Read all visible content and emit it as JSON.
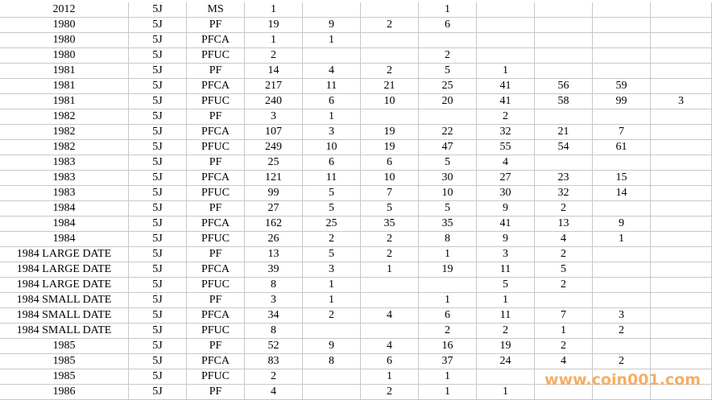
{
  "table": {
    "rows": [
      [
        "2012",
        "5J",
        "MS",
        1,
        null,
        null,
        1,
        null,
        null,
        null,
        null
      ],
      [
        "1980",
        "5J",
        "PF",
        19,
        9,
        2,
        6,
        null,
        null,
        null,
        null
      ],
      [
        "1980",
        "5J",
        "PFCA",
        1,
        1,
        null,
        null,
        null,
        null,
        null,
        null
      ],
      [
        "1980",
        "5J",
        "PFUC",
        2,
        null,
        null,
        2,
        null,
        null,
        null,
        null
      ],
      [
        "1981",
        "5J",
        "PF",
        14,
        4,
        2,
        5,
        1,
        null,
        null,
        null
      ],
      [
        "1981",
        "5J",
        "PFCA",
        217,
        11,
        21,
        25,
        41,
        56,
        59,
        null
      ],
      [
        "1981",
        "5J",
        "PFUC",
        240,
        6,
        10,
        20,
        41,
        58,
        99,
        3
      ],
      [
        "1982",
        "5J",
        "PF",
        3,
        1,
        null,
        null,
        2,
        null,
        null,
        null
      ],
      [
        "1982",
        "5J",
        "PFCA",
        107,
        3,
        19,
        22,
        32,
        21,
        7,
        null
      ],
      [
        "1982",
        "5J",
        "PFUC",
        249,
        10,
        19,
        47,
        55,
        54,
        61,
        null
      ],
      [
        "1983",
        "5J",
        "PF",
        25,
        6,
        6,
        5,
        4,
        null,
        null,
        null
      ],
      [
        "1983",
        "5J",
        "PFCA",
        121,
        11,
        10,
        30,
        27,
        23,
        15,
        null
      ],
      [
        "1983",
        "5J",
        "PFUC",
        99,
        5,
        7,
        10,
        30,
        32,
        14,
        null
      ],
      [
        "1984",
        "5J",
        "PF",
        27,
        5,
        5,
        5,
        9,
        2,
        null,
        null
      ],
      [
        "1984",
        "5J",
        "PFCA",
        162,
        25,
        35,
        35,
        41,
        13,
        9,
        null
      ],
      [
        "1984",
        "5J",
        "PFUC",
        26,
        2,
        2,
        8,
        9,
        4,
        1,
        null
      ],
      [
        "1984 LARGE DATE",
        "5J",
        "PF",
        13,
        5,
        2,
        1,
        3,
        2,
        null,
        null
      ],
      [
        "1984 LARGE DATE",
        "5J",
        "PFCA",
        39,
        3,
        1,
        19,
        11,
        5,
        null,
        null
      ],
      [
        "1984 LARGE DATE",
        "5J",
        "PFUC",
        8,
        1,
        null,
        null,
        5,
        2,
        null,
        null
      ],
      [
        "1984 SMALL DATE",
        "5J",
        "PF",
        3,
        1,
        null,
        1,
        1,
        null,
        null,
        null
      ],
      [
        "1984 SMALL DATE",
        "5J",
        "PFCA",
        34,
        2,
        4,
        6,
        11,
        7,
        3,
        null
      ],
      [
        "1984 SMALL DATE",
        "5J",
        "PFUC",
        8,
        null,
        null,
        2,
        2,
        1,
        2,
        null
      ],
      [
        "1985",
        "5J",
        "PF",
        52,
        9,
        4,
        16,
        19,
        2,
        null,
        null
      ],
      [
        "1985",
        "5J",
        "PFCA",
        83,
        8,
        6,
        37,
        24,
        4,
        2,
        null
      ],
      [
        "1985",
        "5J",
        "PFUC",
        2,
        null,
        1,
        1,
        null,
        null,
        null,
        null
      ],
      [
        "1986",
        "5J",
        "PF",
        4,
        null,
        2,
        1,
        1,
        null,
        null,
        null
      ]
    ]
  },
  "watermark": "www.coin001.com"
}
